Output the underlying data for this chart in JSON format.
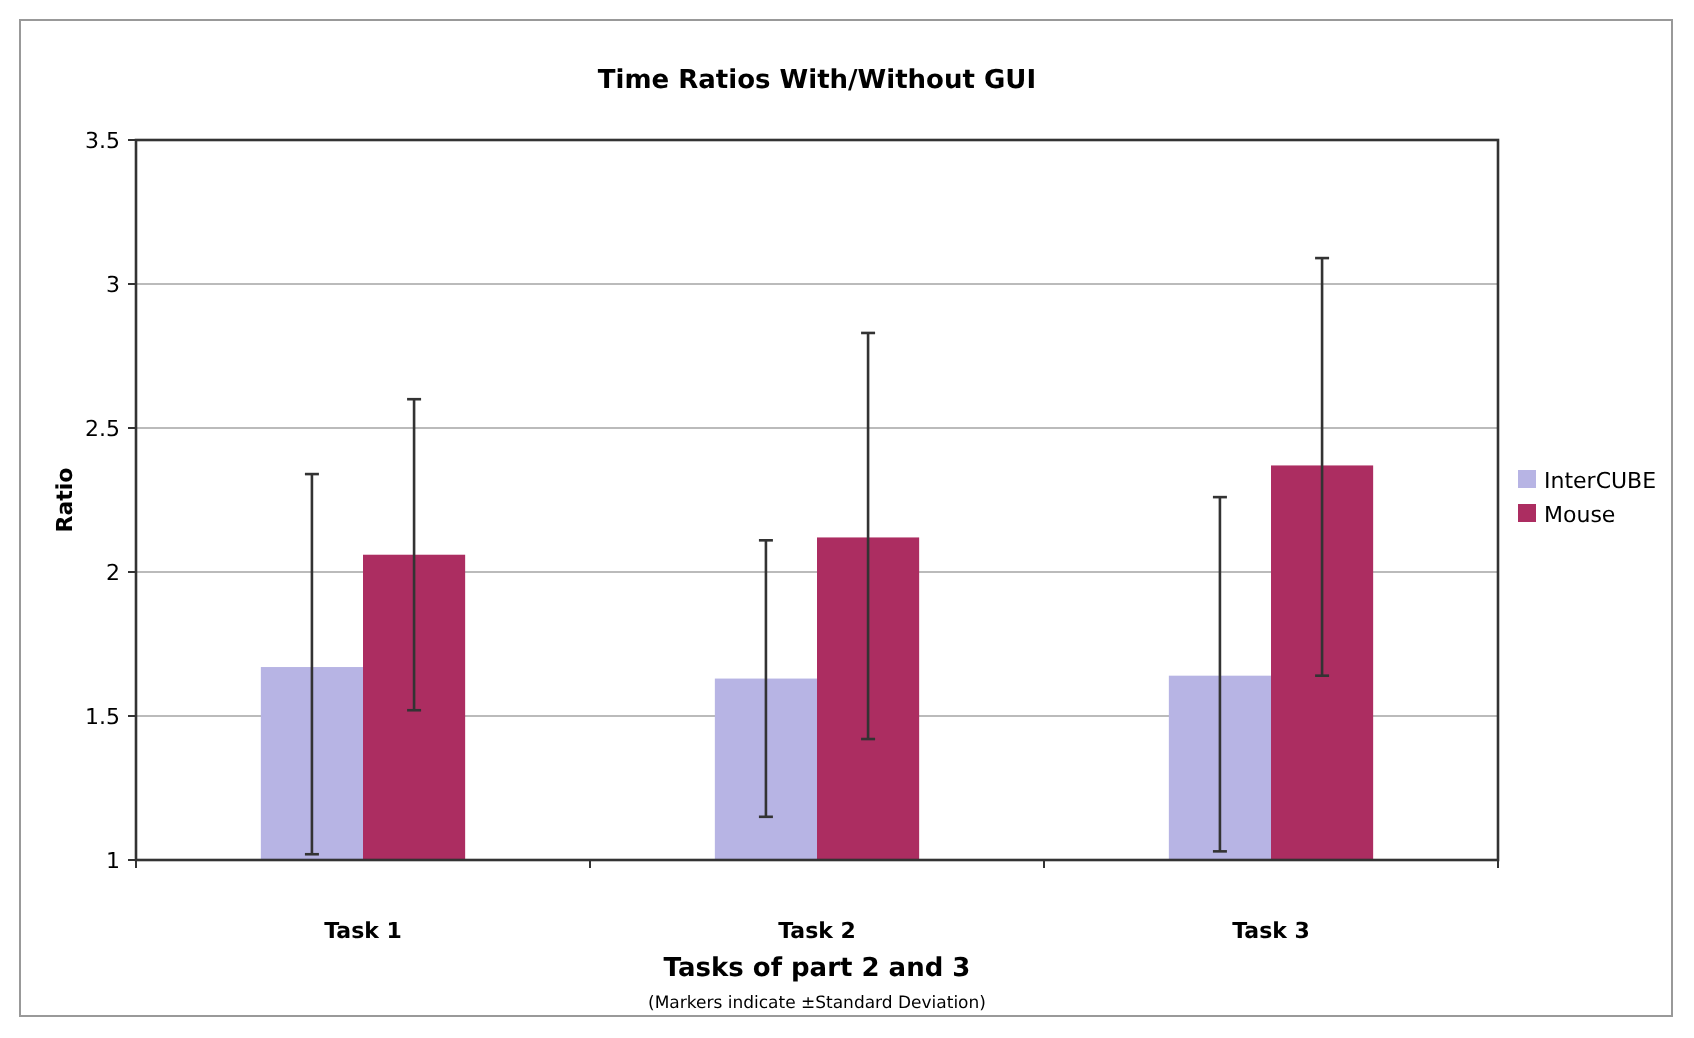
{
  "chart_data": {
    "type": "bar",
    "title": "Time Ratios With/Without GUI",
    "xlabel": "Tasks of part 2 and 3",
    "ylabel": "Ratio",
    "annotations": [
      "(Markers indicate ±Standard Deviation)"
    ],
    "categories": [
      "Task 1",
      "Task 2",
      "Task 3"
    ],
    "series": [
      {
        "name": "InterCUBE",
        "color": "#b7b4e4",
        "values": [
          1.67,
          1.63,
          1.64
        ],
        "errors": [
          [
            1.02,
            2.34
          ],
          [
            1.15,
            2.11
          ],
          [
            1.03,
            2.26
          ]
        ]
      },
      {
        "name": "Mouse",
        "color": "#ac2d61",
        "values": [
          2.06,
          2.12,
          2.37
        ],
        "errors": [
          [
            1.52,
            2.6
          ],
          [
            1.42,
            2.83
          ],
          [
            1.64,
            3.09
          ]
        ]
      }
    ],
    "ylim": [
      1,
      3.5
    ],
    "yticks": [
      1,
      1.5,
      2,
      2.5,
      3,
      3.5
    ],
    "grid": "y",
    "legend": "right"
  }
}
